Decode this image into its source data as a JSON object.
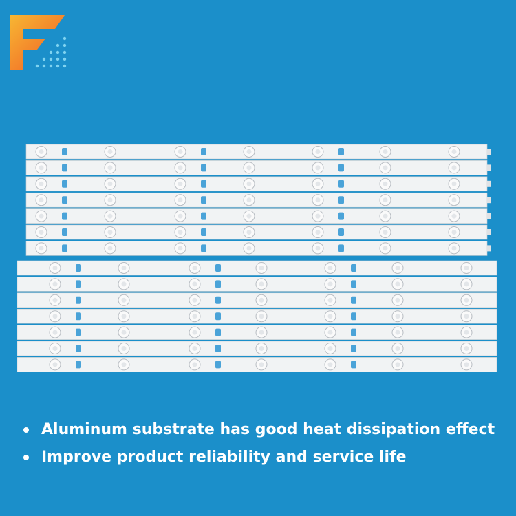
{
  "bullets": [
    "Aluminum substrate has good heat dissipation effect",
    "Improve product reliability and service life"
  ]
}
